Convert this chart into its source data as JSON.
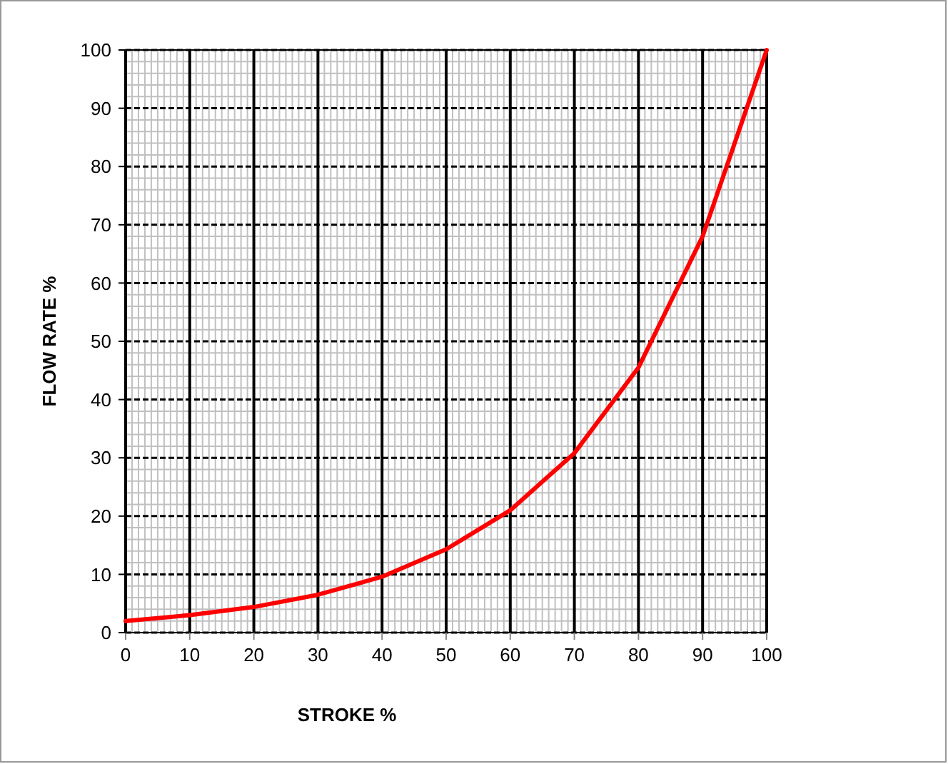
{
  "chart_data": {
    "type": "line",
    "xlabel": "STROKE %",
    "ylabel": "FLOW RATE %",
    "x": [
      0,
      10,
      20,
      30,
      40,
      50,
      60,
      70,
      80,
      90,
      100
    ],
    "series": [
      {
        "color": "#ff0000",
        "values": [
          2,
          3,
          4.4,
          6.5,
          9.6,
          14.3,
          21,
          30.8,
          45.5,
          68,
          100
        ]
      }
    ],
    "xlim": [
      0,
      100
    ],
    "xticks": [
      0,
      10,
      20,
      30,
      40,
      50,
      60,
      70,
      80,
      90,
      100
    ],
    "ylim": [
      0,
      100
    ],
    "yticks": [
      0,
      10,
      20,
      30,
      40,
      50,
      60,
      70,
      80,
      90,
      100
    ],
    "grid": true,
    "marker": "none",
    "line_style": "solid"
  }
}
